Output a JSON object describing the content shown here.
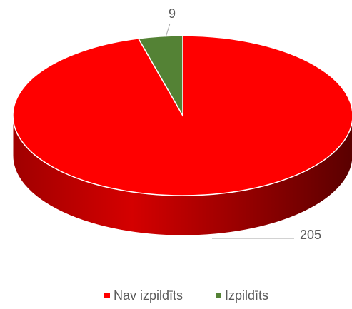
{
  "chart_data": {
    "type": "pie",
    "categories": [
      "Nav izpildīts",
      "Izpildīts"
    ],
    "values": [
      205,
      9
    ],
    "colors": [
      "#ff0000",
      "#548235"
    ]
  }
}
